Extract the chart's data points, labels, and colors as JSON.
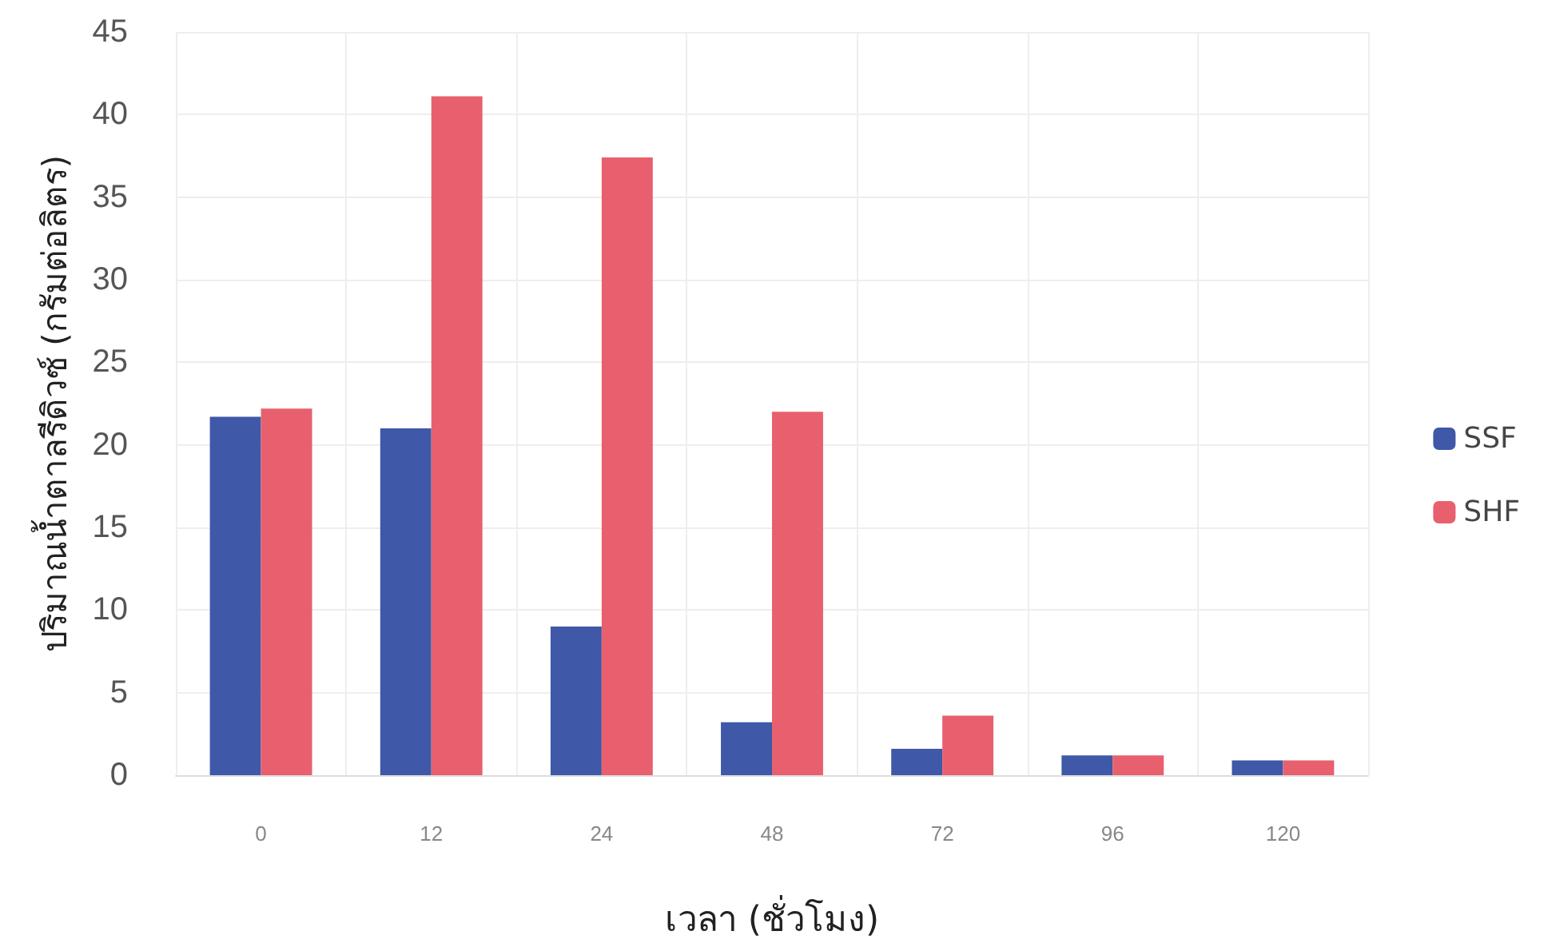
{
  "chart_data": {
    "type": "bar",
    "xlabel": "เวลา (ชั่วโมง)",
    "ylabel": "ปริมาณน้ำตาลรีดิวซ์ (กรัมต่อลิตร)",
    "categories": [
      "0",
      "12",
      "24",
      "48",
      "72",
      "96",
      "120"
    ],
    "series": [
      {
        "name": "SSF",
        "color": "#3f58a8",
        "values": [
          21.7,
          21.0,
          9.0,
          3.2,
          1.6,
          1.2,
          0.9
        ]
      },
      {
        "name": "SHF",
        "color": "#e8606e",
        "values": [
          22.2,
          41.1,
          37.4,
          22.0,
          3.6,
          1.2,
          0.9
        ]
      }
    ],
    "ylim": [
      0,
      45
    ],
    "yticks": [
      0,
      5,
      10,
      15,
      20,
      25,
      30,
      35,
      40,
      45
    ],
    "grid": true,
    "legend": "right"
  }
}
